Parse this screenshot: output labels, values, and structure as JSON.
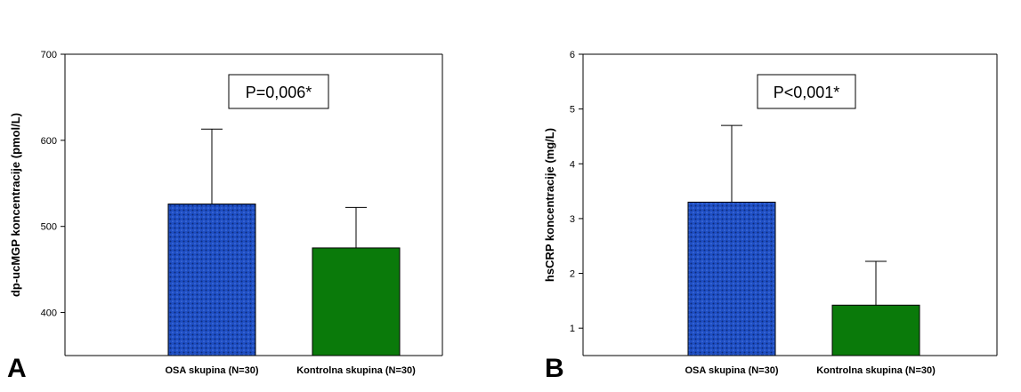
{
  "colors": {
    "osa_fill": "#1f4fc4",
    "osa_pattern": "#0d2a78",
    "control_fill": "#0a7a0a",
    "axis": "#000000",
    "background": "#ffffff"
  },
  "chart_data": [
    {
      "type": "bar",
      "panel_label": "A",
      "annotation": "P=0,006*",
      "title": "",
      "xlabel": "",
      "ylabel": "dp-ucMGP koncentracije (pmol/L)",
      "ylim": [
        350,
        700
      ],
      "yticks": [
        400,
        500,
        600,
        700
      ],
      "categories": [
        "OSA skupina (N=30)",
        "Kontrolna skupina (N=30)"
      ],
      "values": [
        526,
        475
      ],
      "error_upper": [
        613,
        522
      ],
      "bar_colors": [
        "#1f4fc4",
        "#0a7a0a"
      ],
      "bar_patterns": [
        "dotted",
        "solid"
      ],
      "grid": false
    },
    {
      "type": "bar",
      "panel_label": "B",
      "annotation": "P<0,001*",
      "title": "",
      "xlabel": "",
      "ylabel": "hsCRP koncentracije (mg/L)",
      "ylim": [
        0.5,
        6
      ],
      "yticks": [
        1,
        2,
        3,
        4,
        5,
        6
      ],
      "categories": [
        "OSA skupina (N=30)",
        "Kontrolna skupina (N=30)"
      ],
      "values": [
        3.3,
        1.42
      ],
      "error_upper": [
        4.7,
        2.22
      ],
      "bar_colors": [
        "#1f4fc4",
        "#0a7a0a"
      ],
      "bar_patterns": [
        "dotted",
        "solid"
      ],
      "grid": false
    }
  ]
}
